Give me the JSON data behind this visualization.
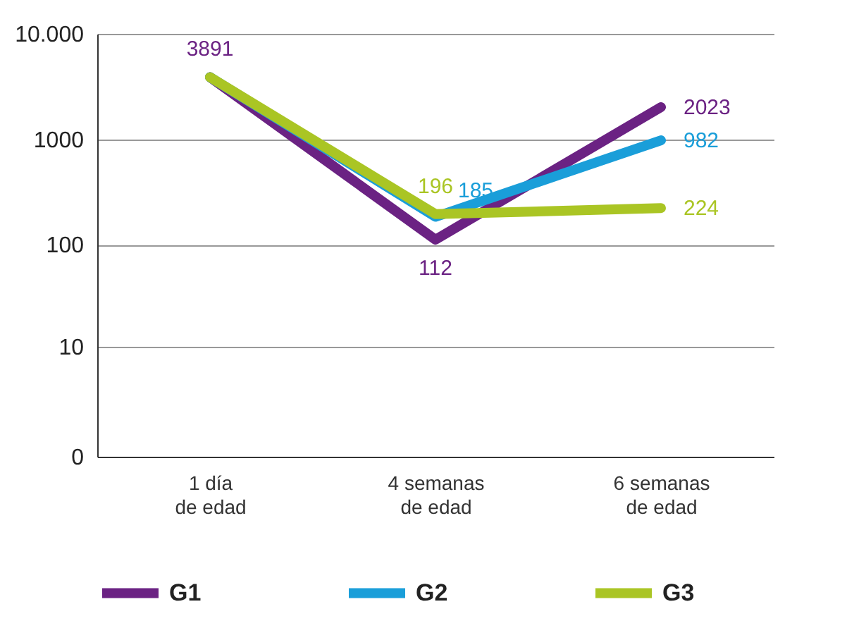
{
  "chart_data": {
    "type": "line",
    "categories": [
      "1 día\nde edad",
      "4 semanas\nde edad",
      "6 semanas\nde edad"
    ],
    "series": [
      {
        "name": "G1",
        "color": "#6b2283",
        "values": [
          3891,
          112,
          2023
        ],
        "value_labels": [
          "3891",
          "112",
          "2023"
        ]
      },
      {
        "name": "G2",
        "color": "#1a9ed9",
        "values": [
          3891,
          185,
          982
        ],
        "value_labels": [
          null,
          "185",
          "982"
        ]
      },
      {
        "name": "G3",
        "color": "#aac524",
        "values": [
          3891,
          196,
          224
        ],
        "value_labels": [
          null,
          "196",
          "224"
        ]
      }
    ],
    "log": "y",
    "ylim": [
      0,
      10000
    ],
    "yticks": [
      0,
      10,
      100,
      1000,
      {
        "value": 10000,
        "label": "10.000"
      }
    ],
    "grid": "y",
    "legend": "bottom",
    "marker": "none",
    "line_style": "solid"
  }
}
